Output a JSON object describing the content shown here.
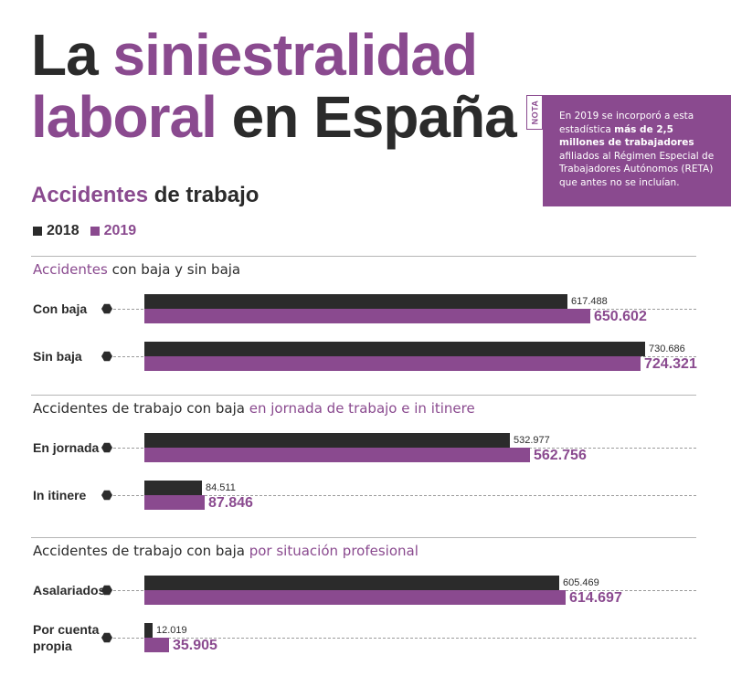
{
  "header": {
    "title_part1": "La ",
    "title_hl1": "siniestralidad",
    "title_hl2": "laboral",
    "title_part2": " en España"
  },
  "note": {
    "tag": "NOTA",
    "text_before": "En 2019 se incorporó a esta estadística ",
    "text_bold": "más de 2,5 millones de trabajadores",
    "text_after": " afiliados al Régimen Especial de Trabajadores Autónomos (RETA) que antes no se incluían."
  },
  "subtitle": {
    "hl": "Accidentes",
    "rest": " de trabajo"
  },
  "colors": {
    "y2018": "#2b2b2b",
    "y2019": "#8a4a8f"
  },
  "chart_data": {
    "type": "bar",
    "orientation": "horizontal",
    "legend": [
      "2018",
      "2019"
    ],
    "sections": [
      {
        "title_plain": "",
        "title_hl": "Accidentes",
        "title_rest": " con baja y sin baja",
        "rows": [
          {
            "label": "Con baja",
            "values": [
              617488,
              650602
            ],
            "labels": [
              "617.488",
              "650.602"
            ]
          },
          {
            "label": "Sin baja",
            "values": [
              730686,
              724321
            ],
            "labels": [
              "730.686",
              "724.321"
            ]
          }
        ]
      },
      {
        "title_plain": "Accidentes de trabajo con baja ",
        "title_hl": "en jornada de trabajo e in itinere",
        "title_rest": "",
        "rows": [
          {
            "label": "En jornada",
            "values": [
              532977,
              562756
            ],
            "labels": [
              "532.977",
              "562.756"
            ]
          },
          {
            "label": "In itinere",
            "values": [
              84511,
              87846
            ],
            "labels": [
              "84.511",
              "87.846"
            ]
          }
        ]
      },
      {
        "title_plain": "Accidentes de trabajo con baja ",
        "title_hl": "por situación profesional",
        "title_rest": "",
        "rows": [
          {
            "label": "Asalariados",
            "values": [
              605469,
              614697
            ],
            "labels": [
              "605.469",
              "614.697"
            ]
          },
          {
            "label": "Por cuenta propia",
            "values": [
              12019,
              35905
            ],
            "labels": [
              "12.019",
              "35.905"
            ]
          }
        ]
      }
    ]
  }
}
